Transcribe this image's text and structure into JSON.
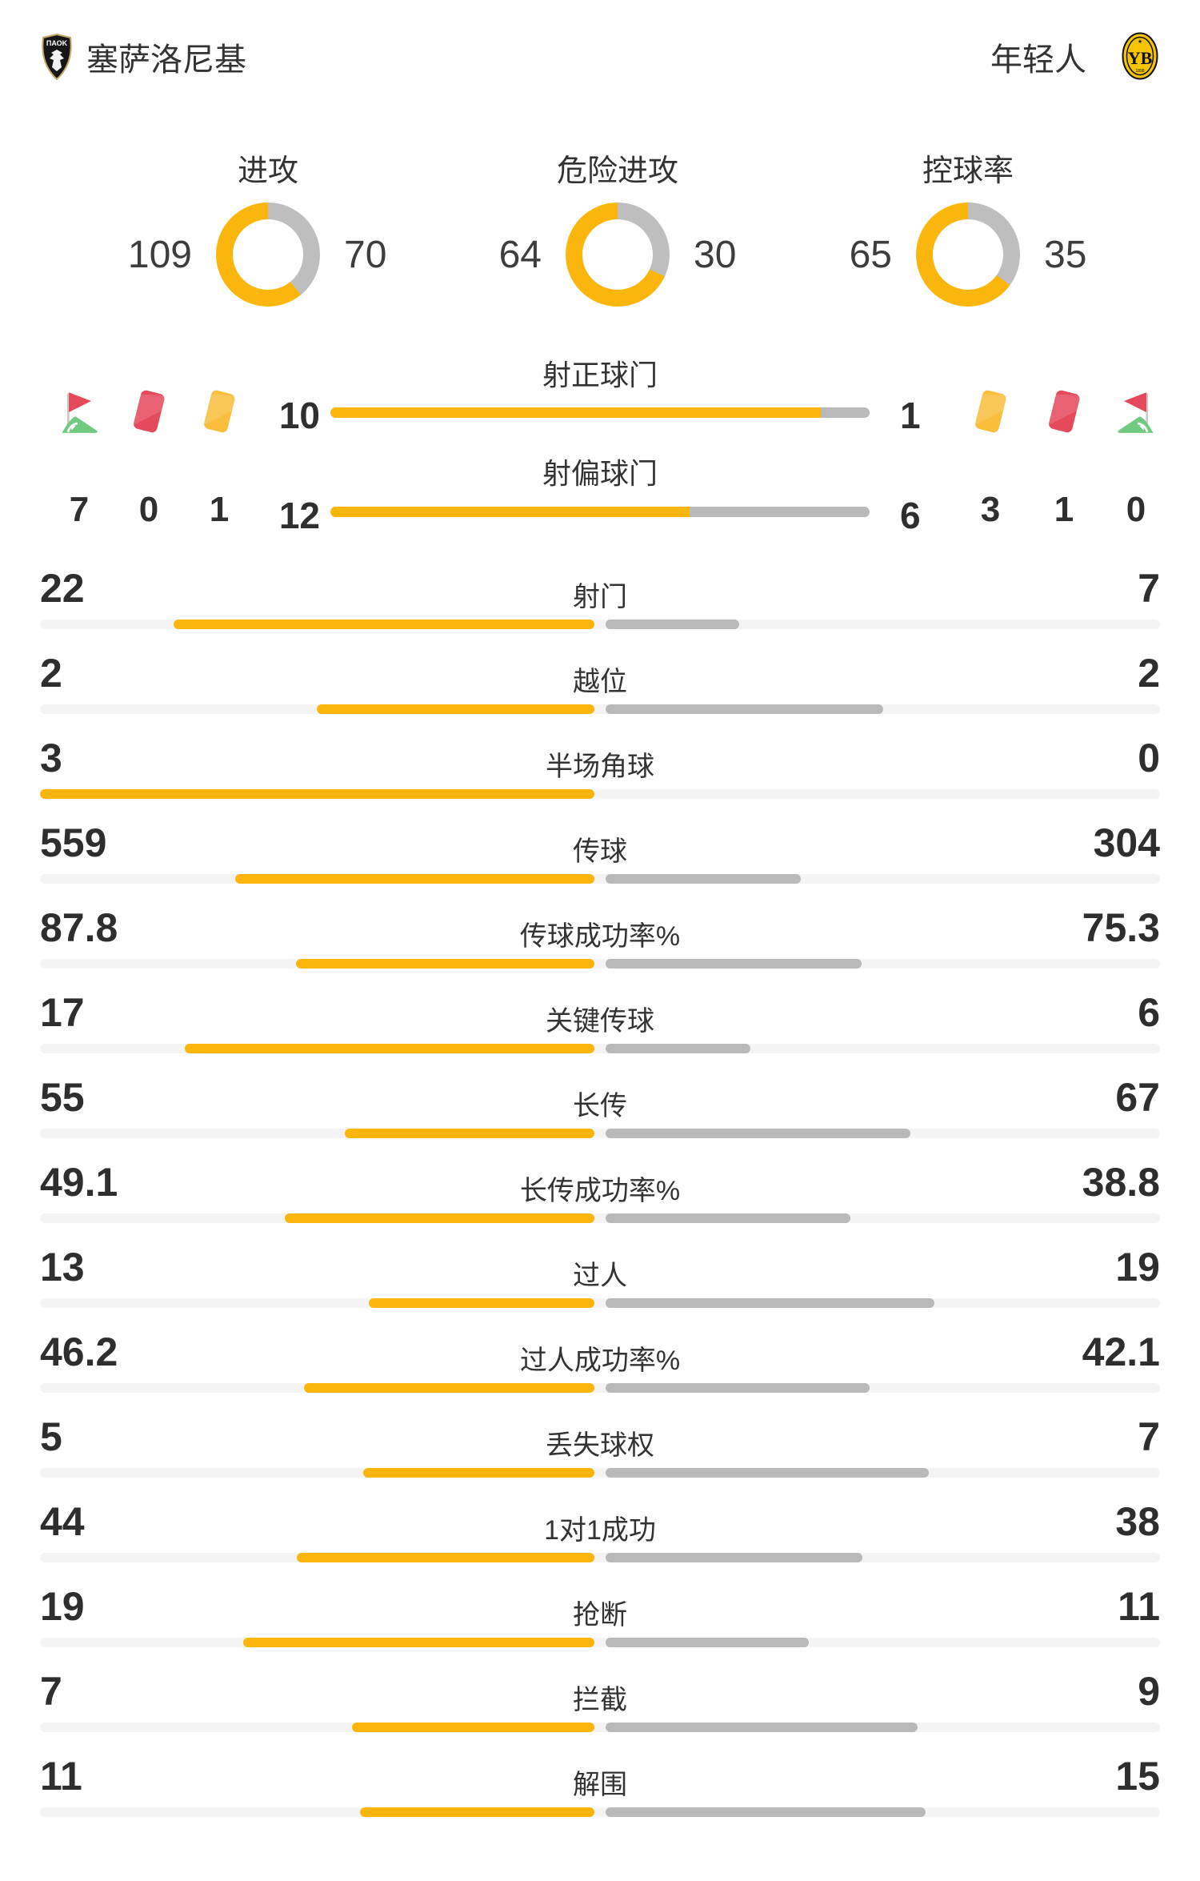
{
  "colors": {
    "yellow": "#FBB60D",
    "bar_gray": "#B9B9B9",
    "track_gray": "#F4F4F5",
    "donut_gray": "#BEBEBE",
    "red_card": "#E5495C",
    "yellow_card": "#F9BE3C",
    "grass_green": "#72C981",
    "pole_gray": "#C9C9C9",
    "text_dark": "#2F2F2F"
  },
  "header": {
    "home": {
      "name": "塞萨洛尼基",
      "crest": "paok-crest",
      "crest_text": "ΠΑΟΚ"
    },
    "away": {
      "name": "年轻人",
      "crest": "young-boys-crest",
      "crest_text": "YB",
      "crest_year": "1898"
    }
  },
  "donuts": [
    {
      "label": "进攻",
      "home": 109,
      "away": 70
    },
    {
      "label": "危险进攻",
      "home": 64,
      "away": 30
    },
    {
      "label": "控球率",
      "home": 65,
      "away": 35
    }
  ],
  "shots": [
    {
      "label": "射正球门",
      "home": 10,
      "away": 1
    },
    {
      "label": "射偏球门",
      "home": 12,
      "away": 6
    }
  ],
  "discipline": {
    "home": [
      {
        "icon": "corner-flag-icon",
        "count": 7
      },
      {
        "icon": "red-card-icon",
        "count": 0
      },
      {
        "icon": "yellow-card-icon",
        "count": 1
      }
    ],
    "away": [
      {
        "icon": "yellow-card-icon",
        "count": 3
      },
      {
        "icon": "red-card-icon",
        "count": 1
      },
      {
        "icon": "corner-flag-icon",
        "count": 0
      }
    ]
  },
  "stats": [
    {
      "label": "射门",
      "home": "22",
      "away": "7"
    },
    {
      "label": "越位",
      "home": "2",
      "away": "2"
    },
    {
      "label": "半场角球",
      "home": "3",
      "away": "0"
    },
    {
      "label": "传球",
      "home": "559",
      "away": "304"
    },
    {
      "label": "传球成功率%",
      "home": "87.8",
      "away": "75.3"
    },
    {
      "label": "关键传球",
      "home": "17",
      "away": "6"
    },
    {
      "label": "长传",
      "home": "55",
      "away": "67"
    },
    {
      "label": "长传成功率%",
      "home": "49.1",
      "away": "38.8"
    },
    {
      "label": "过人",
      "home": "13",
      "away": "19"
    },
    {
      "label": "过人成功率%",
      "home": "46.2",
      "away": "42.1"
    },
    {
      "label": "丢失球权",
      "home": "5",
      "away": "7"
    },
    {
      "label": "1对1成功",
      "home": "44",
      "away": "38"
    },
    {
      "label": "抢断",
      "home": "19",
      "away": "11"
    },
    {
      "label": "拦截",
      "home": "7",
      "away": "9"
    },
    {
      "label": "解围",
      "home": "11",
      "away": "15"
    }
  ]
}
